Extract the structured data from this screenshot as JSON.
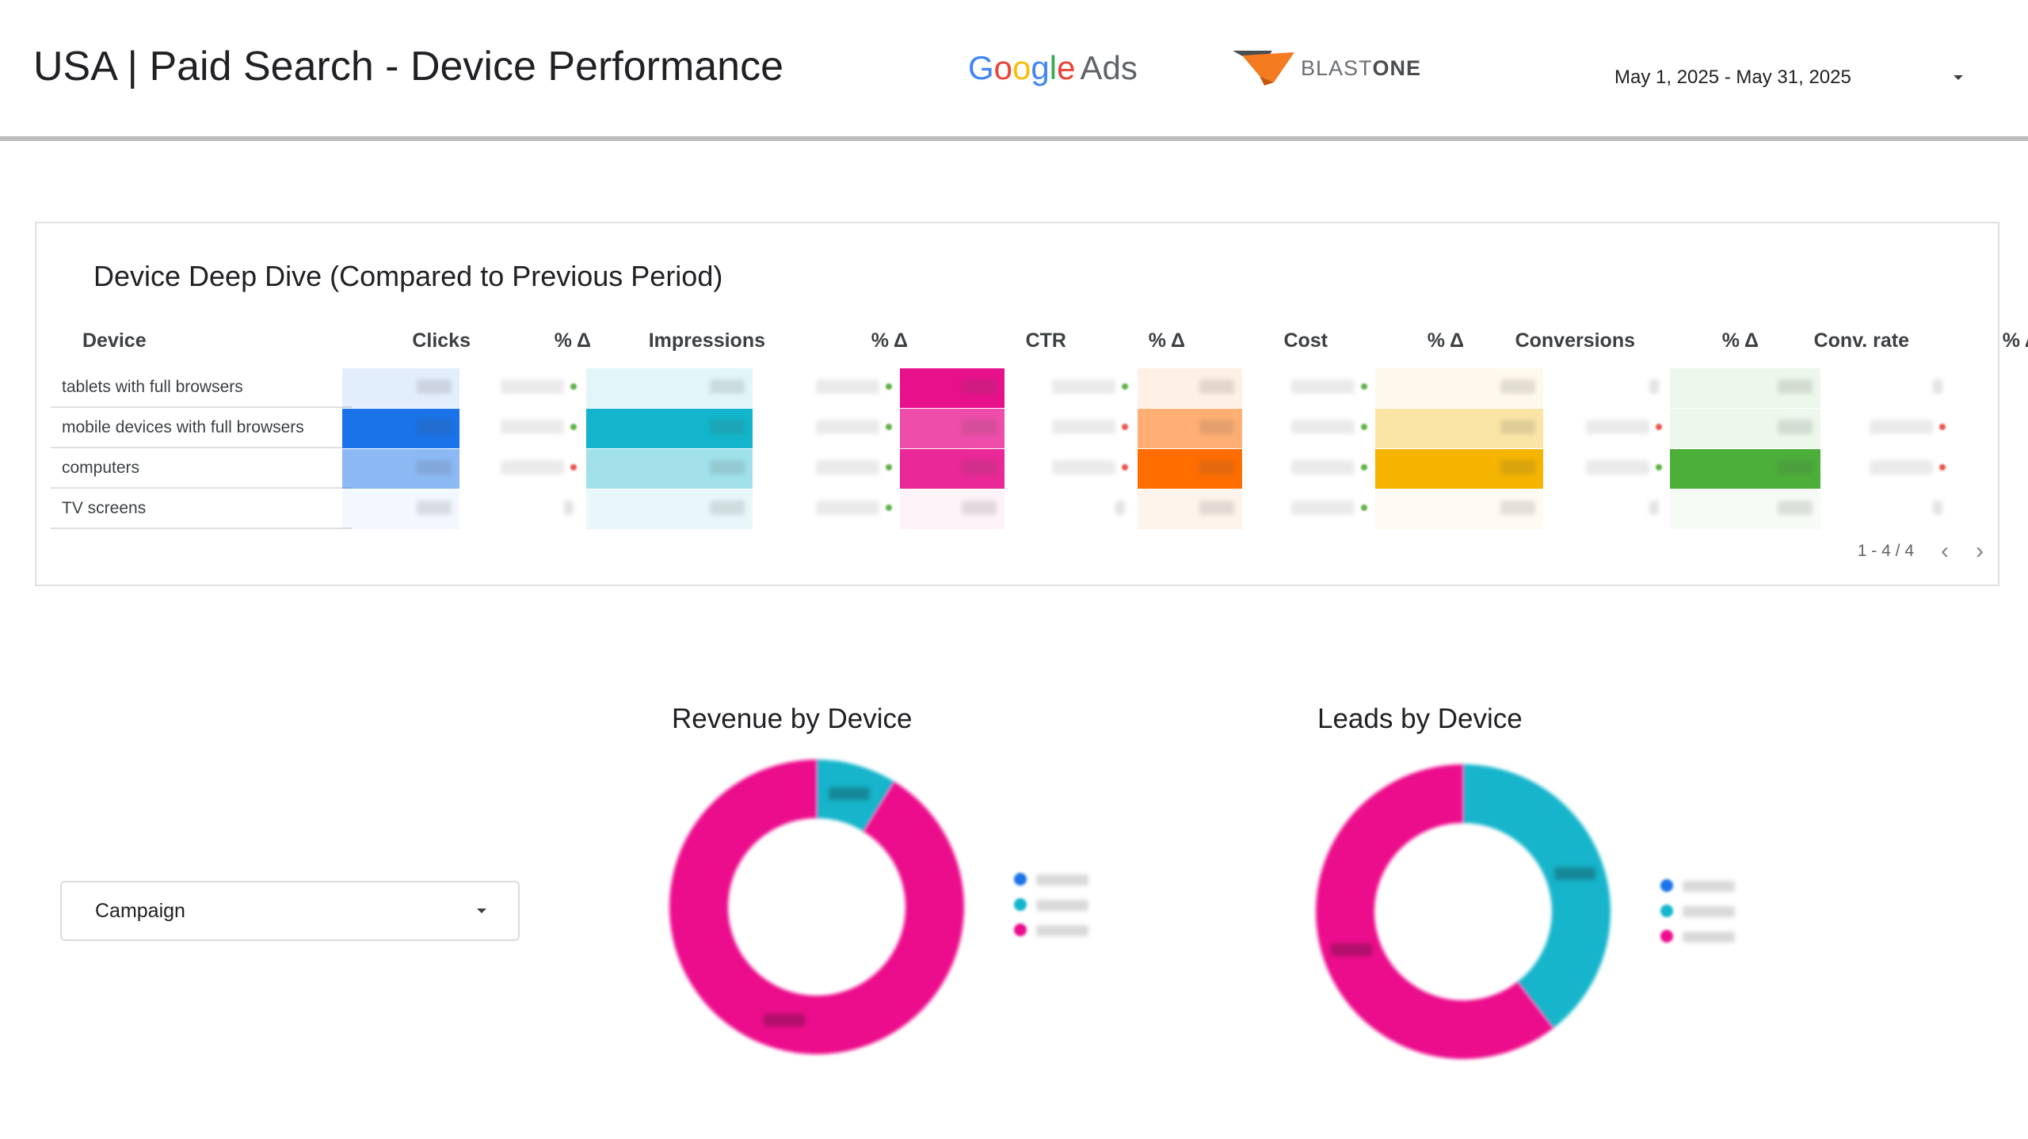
{
  "header": {
    "title": "USA | Paid Search - Device Performance",
    "google_ads_logo": {
      "google": "Google",
      "ads": "Ads",
      "letter_colors": [
        "#4285F4",
        "#EA4335",
        "#FBBC05",
        "#4285F4",
        "#34A853",
        "#EA4335"
      ]
    },
    "partner_logo": {
      "word_light": "BLAST",
      "word_bold": "ONE",
      "mark_colors": [
        "#4a4d50",
        "#f47b20"
      ]
    },
    "date_range": {
      "label": "May 1, 2025 - May 31, 2025",
      "icon": "dropdown-caret-icon"
    }
  },
  "table": {
    "title": "Device Deep Dive (Compared to Previous Period)",
    "columns": [
      "Device",
      "Clicks",
      "% Δ",
      "Impressions",
      "% Δ",
      "CTR",
      "% Δ",
      "Cost",
      "% Δ",
      "Conversions",
      "% Δ",
      "Conv. rate",
      "% Δ"
    ],
    "rows": [
      {
        "device": "tablets with full browsers",
        "clicks_heat": 0.12,
        "impr_heat": 0.12,
        "ctr_heat": 1.0,
        "cost_heat": 0.1,
        "conv_heat": 0.08,
        "rate_heat": 0.1,
        "deltas": [
          "up",
          "up",
          "up",
          "up",
          "none",
          "none"
        ]
      },
      {
        "device": "mobile devices with full browsers",
        "clicks_heat": 1.0,
        "impr_heat": 1.0,
        "ctr_heat": 0.75,
        "cost_heat": 0.55,
        "conv_heat": 0.35,
        "rate_heat": 0.1,
        "deltas": [
          "up",
          "up",
          "down",
          "up",
          "down",
          "down"
        ]
      },
      {
        "device": "computers",
        "clicks_heat": 0.5,
        "impr_heat": 0.4,
        "ctr_heat": 0.9,
        "cost_heat": 1.0,
        "conv_heat": 1.0,
        "rate_heat": 1.0,
        "deltas": [
          "down",
          "up",
          "down",
          "up",
          "up",
          "down"
        ]
      },
      {
        "device": "TV screens",
        "clicks_heat": 0.04,
        "impr_heat": 0.1,
        "ctr_heat": 0.04,
        "cost_heat": 0.08,
        "conv_heat": 0.02,
        "rate_heat": 0.02,
        "deltas": [
          "none",
          "up",
          "none",
          "up",
          "none",
          "none"
        ]
      }
    ],
    "heat_colors": {
      "clicks": "#1a73e8",
      "impressions": "#12b5cb",
      "ctr": "#e8118c",
      "cost": "#ff6d00",
      "conversions": "#f4b400",
      "conv_rate": "#4caf3a"
    },
    "pagination": {
      "label": "1 - 4 / 4",
      "prev_icon": "chevron-left-icon",
      "next_icon": "chevron-right-icon"
    }
  },
  "campaign_filter": {
    "label": "Campaign",
    "icon": "dropdown-caret-icon"
  },
  "charts_text": {
    "revenue_title": "Revenue by Device",
    "leads_title": "Leads by Device"
  },
  "chart_data": [
    {
      "type": "pie",
      "title": "Revenue by Device",
      "series": [
        {
          "color": "#1a73e8",
          "value": 0
        },
        {
          "color": "#12b5cb",
          "value": 8.8
        },
        {
          "color": "#ec0b8c",
          "value": 91.2
        }
      ],
      "donut": true,
      "legend": "right"
    },
    {
      "type": "pie",
      "title": "Leads by Device",
      "series": [
        {
          "color": "#1a73e8",
          "value": 0
        },
        {
          "color": "#12b5cb",
          "value": 39.5
        },
        {
          "color": "#ec0b8c",
          "value": 60.5
        }
      ],
      "donut": true,
      "legend": "right"
    }
  ]
}
